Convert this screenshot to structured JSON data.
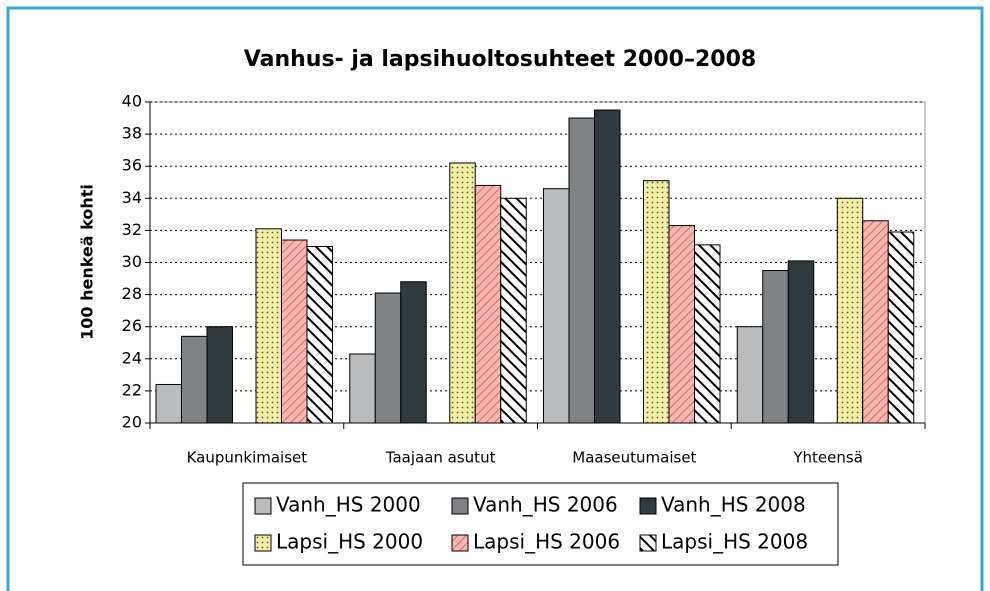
{
  "chart_data": {
    "type": "bar",
    "title": "Vanhus- ja lapsihuoltosuhteet 2000–2008",
    "y_label": "100 henkeä kohti",
    "categories": [
      "Kaupunkimaiset",
      "Taajaan asutut",
      "Maaseutumaiset",
      "Yhteensä"
    ],
    "series": [
      {
        "name": "Vanh_HS 2000",
        "color": "#b9bbbd",
        "pattern": "solid",
        "values": [
          22.4,
          24.3,
          34.6,
          26.0
        ]
      },
      {
        "name": "Vanh_HS 2006",
        "color": "#7f8385",
        "pattern": "solid",
        "values": [
          25.4,
          28.1,
          39.0,
          29.5
        ]
      },
      {
        "name": "Vanh_HS 2008",
        "color": "#2f3b3e",
        "pattern": "solid",
        "values": [
          26.0,
          28.8,
          39.5,
          30.1
        ]
      },
      {
        "name": "Lapsi_HS 2000",
        "color": "#f3eea0",
        "pattern": "dots",
        "values": [
          32.1,
          36.2,
          35.1,
          34.0
        ]
      },
      {
        "name": "Lapsi_HS 2006",
        "color": "#f6b8b2",
        "pattern": "thin-diagonal",
        "values": [
          31.4,
          34.8,
          32.3,
          32.6
        ]
      },
      {
        "name": "Lapsi_HS 2008",
        "color": "#ffffff",
        "pattern": "thick-diagonal",
        "values": [
          31.0,
          34.0,
          31.1,
          31.9
        ]
      }
    ],
    "ylim": [
      20,
      40
    ],
    "yticks": [
      20,
      22,
      24,
      26,
      28,
      30,
      32,
      34,
      36,
      38,
      40
    ],
    "grid": true,
    "legend": "bottom"
  }
}
